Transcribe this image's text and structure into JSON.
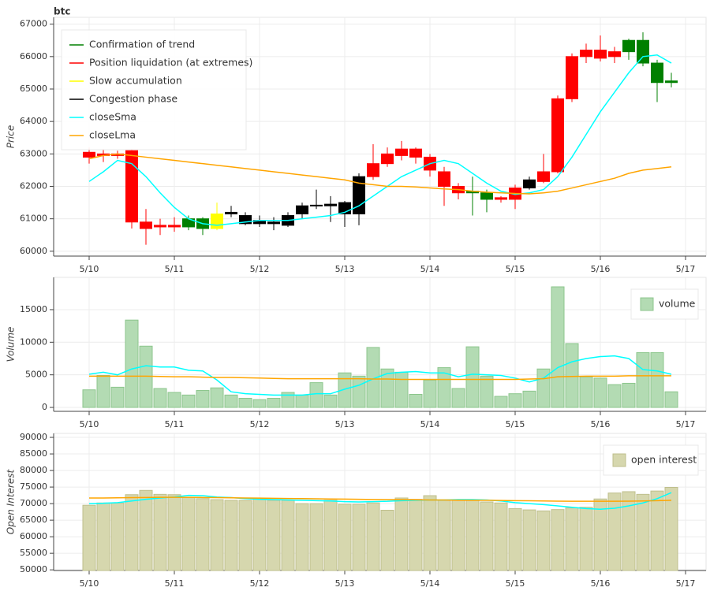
{
  "chart_data": [
    {
      "type": "candlestick",
      "title": "btc",
      "ylabel": "Price",
      "ylim": [
        59850,
        67210
      ],
      "yticks": [
        60000,
        61000,
        62000,
        63000,
        64000,
        65000,
        66000,
        67000
      ],
      "xticks": [
        "5/10",
        "5/11",
        "5/12",
        "5/13",
        "5/14",
        "5/15",
        "5/16",
        "5/17"
      ],
      "open": [
        63050,
        63000,
        63000,
        63100,
        60900,
        60800,
        60800,
        60750,
        60700,
        60700,
        61150,
        61100,
        60950,
        60900,
        60800,
        61150,
        61400,
        61400,
        61500,
        61150,
        62300,
        62700,
        62950,
        63150,
        62900,
        62450,
        62000,
        61850,
        61800,
        61650,
        61600,
        61950,
        62150,
        62450,
        64700,
        66000,
        66200,
        66150,
        66150,
        66500,
        65800,
        65250
      ],
      "close": [
        62900,
        62950,
        62950,
        60900,
        60700,
        60750,
        60750,
        61000,
        61000,
        61150,
        61200,
        60850,
        60850,
        60850,
        61100,
        61400,
        61420,
        61450,
        61150,
        62300,
        62700,
        63000,
        63150,
        62900,
        62500,
        62000,
        61800,
        61800,
        61600,
        61600,
        61950,
        62200,
        62450,
        64700,
        66000,
        66200,
        65950,
        66000,
        66500,
        65800,
        65200,
        65200
      ],
      "high": [
        63200,
        63150,
        63100,
        63150,
        61300,
        61000,
        61050,
        61100,
        61050,
        61500,
        61400,
        61200,
        61100,
        61050,
        61200,
        61500,
        61900,
        61700,
        61550,
        62400,
        63300,
        63200,
        63400,
        63200,
        63000,
        62600,
        62100,
        62300,
        61900,
        61700,
        62050,
        62300,
        63000,
        64800,
        66100,
        66400,
        66650,
        66300,
        66550,
        66750,
        65900,
        65500
      ],
      "low": [
        62700,
        62750,
        62850,
        60700,
        60200,
        60500,
        60600,
        60650,
        60500,
        60650,
        61050,
        60800,
        60750,
        60650,
        60750,
        61000,
        61300,
        60900,
        60750,
        60800,
        62200,
        62600,
        62800,
        62700,
        62300,
        61400,
        61600,
        61100,
        61200,
        61500,
        61300,
        61900,
        62100,
        62400,
        64600,
        65800,
        65850,
        65800,
        65900,
        65700,
        64600,
        65050
      ],
      "colors": [
        "#ff0000",
        "#ff0000",
        "#ff0000",
        "#ff0000",
        "#ff0000",
        "#ff0000",
        "#ff0000",
        "#008000",
        "#008000",
        "#ffff00",
        "#000000",
        "#000000",
        "#000000",
        "#000000",
        "#000000",
        "#000000",
        "#000000",
        "#000000",
        "#000000",
        "#000000",
        "#ff0000",
        "#ff0000",
        "#ff0000",
        "#ff0000",
        "#ff0000",
        "#ff0000",
        "#ff0000",
        "#008000",
        "#008000",
        "#ff0000",
        "#ff0000",
        "#000000",
        "#ff0000",
        "#ff0000",
        "#ff0000",
        "#ff0000",
        "#ff0000",
        "#ff0000",
        "#008000",
        "#008000",
        "#008000",
        "#008000"
      ],
      "phases": [
        {
          "name": "Confirmation of trend",
          "color": "#008000"
        },
        {
          "name": "Position liquidation (at extremes)",
          "color": "#ff0000"
        },
        {
          "name": "Slow accumulation",
          "color": "#ffff00"
        },
        {
          "name": "Congestion phase",
          "color": "#000000"
        }
      ],
      "series": [
        {
          "name": "closeSma",
          "color": "#00ffff",
          "values": [
            62150,
            62450,
            62800,
            62700,
            62300,
            61800,
            61350,
            61000,
            60850,
            60800,
            60850,
            60900,
            60950,
            60950,
            60950,
            61000,
            61050,
            61100,
            61200,
            61400,
            61700,
            62000,
            62300,
            62500,
            62700,
            62800,
            62700,
            62400,
            62100,
            61850,
            61750,
            61800,
            61900,
            62300,
            62900,
            63600,
            64300,
            64900,
            65500,
            66000,
            66050,
            65800
          ]
        },
        {
          "name": "closeLma",
          "color": "#ffa500",
          "values": [
            62850,
            62950,
            63000,
            62950,
            62900,
            62850,
            62800,
            62750,
            62700,
            62650,
            62600,
            62550,
            62500,
            62450,
            62400,
            62350,
            62300,
            62250,
            62200,
            62100,
            62050,
            62000,
            62000,
            61980,
            61950,
            61920,
            61900,
            61850,
            61820,
            61800,
            61780,
            61770,
            61800,
            61850,
            61950,
            62050,
            62150,
            62250,
            62400,
            62500,
            62550,
            62600
          ]
        }
      ]
    },
    {
      "type": "bar",
      "ylabel": "Volume",
      "name": "volume",
      "color": "#b3dbb3",
      "edge": "#8cc68c",
      "ylim": [
        -600,
        19950
      ],
      "yticks": [
        0,
        5000,
        10000,
        15000
      ],
      "xticks": [
        "5/10",
        "5/11",
        "5/12",
        "5/13",
        "5/14",
        "5/15",
        "5/16",
        "5/17"
      ],
      "values": [
        2700,
        4900,
        3100,
        13400,
        9400,
        2900,
        2300,
        1900,
        2600,
        3000,
        1900,
        1400,
        1200,
        1400,
        2300,
        1900,
        3800,
        1900,
        5300,
        4800,
        9200,
        5900,
        5400,
        2000,
        4200,
        6100,
        2900,
        9300,
        4800,
        1700,
        2100,
        2500,
        5900,
        18500,
        9800,
        4700,
        4500,
        3500,
        3700,
        8400,
        8400,
        2400
      ],
      "lines": [
        {
          "color": "#00ffff",
          "values": [
            5100,
            5400,
            5000,
            5900,
            6400,
            6200,
            6200,
            5700,
            5600,
            4200,
            2400,
            2100,
            2000,
            1900,
            1900,
            1900,
            2100,
            2100,
            2800,
            3400,
            4400,
            5200,
            5400,
            5500,
            5300,
            5300,
            4700,
            5100,
            5000,
            4900,
            4500,
            3900,
            4500,
            6100,
            7000,
            7500,
            7800,
            7900,
            7500,
            5800,
            5600,
            5100
          ]
        },
        {
          "color": "#ffa500",
          "values": [
            4800,
            4800,
            4800,
            4800,
            4800,
            4750,
            4700,
            4700,
            4650,
            4600,
            4600,
            4550,
            4500,
            4450,
            4400,
            4400,
            4400,
            4400,
            4400,
            4400,
            4350,
            4350,
            4300,
            4300,
            4300,
            4300,
            4300,
            4300,
            4300,
            4300,
            4300,
            4350,
            4400,
            4700,
            4750,
            4800,
            4800,
            4800,
            4850,
            4850,
            4850,
            4850
          ]
        }
      ]
    },
    {
      "type": "bar",
      "ylabel": "Open Interest",
      "name": "open interest",
      "color": "#d6d7ae",
      "edge": "#bfbf8c",
      "ylim": [
        49800,
        91200
      ],
      "yticks": [
        50000,
        55000,
        60000,
        65000,
        70000,
        75000,
        80000,
        85000,
        90000
      ],
      "xticks": [
        "5/10",
        "5/11",
        "5/12",
        "5/13",
        "5/14",
        "5/15",
        "5/16",
        "5/17"
      ],
      "values": [
        69500,
        70200,
        70200,
        72700,
        74000,
        72800,
        72700,
        71800,
        71500,
        71200,
        71000,
        71000,
        71500,
        71000,
        71000,
        70000,
        70000,
        71000,
        69800,
        69800,
        70200,
        68000,
        71700,
        71300,
        72400,
        71000,
        71000,
        71200,
        70500,
        70200,
        68500,
        68100,
        67800,
        68200,
        68700,
        68900,
        71400,
        73200,
        73600,
        72800,
        73800,
        74900
      ],
      "lines": [
        {
          "color": "#00ffff",
          "values": [
            70000,
            70100,
            70300,
            70800,
            71300,
            71700,
            72000,
            72500,
            72400,
            72000,
            71800,
            71500,
            71300,
            71200,
            71100,
            71000,
            70900,
            70800,
            70600,
            70500,
            70600,
            70700,
            70900,
            71000,
            71100,
            71100,
            71200,
            71200,
            71100,
            70800,
            70300,
            70000,
            69700,
            69300,
            68900,
            68500,
            68300,
            68600,
            69300,
            70200,
            71500,
            73300
          ]
        },
        {
          "color": "#ffa500",
          "values": [
            71700,
            71700,
            71750,
            71800,
            71850,
            71900,
            71900,
            71900,
            71850,
            71800,
            71750,
            71700,
            71650,
            71600,
            71550,
            71500,
            71450,
            71400,
            71350,
            71300,
            71250,
            71200,
            71200,
            71150,
            71100,
            71100,
            71050,
            71000,
            71000,
            70950,
            70900,
            70850,
            70800,
            70750,
            70700,
            70700,
            70700,
            70700,
            70750,
            70800,
            70900,
            71000
          ]
        }
      ]
    }
  ]
}
